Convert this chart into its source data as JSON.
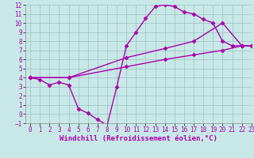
{
  "line1_x": [
    0,
    1,
    2,
    3,
    4,
    5,
    6,
    7,
    8,
    9,
    10,
    11,
    12,
    13,
    14,
    15,
    16,
    17,
    18,
    19,
    20,
    21,
    22,
    23
  ],
  "line1_y": [
    4.0,
    3.8,
    3.2,
    3.5,
    3.2,
    0.6,
    0.1,
    -0.6,
    -1.2,
    3.0,
    7.5,
    9.0,
    10.5,
    11.8,
    12.0,
    11.8,
    11.2,
    11.0,
    10.4,
    10.0,
    8.0,
    7.5,
    7.5,
    7.5
  ],
  "line2_x": [
    0,
    4,
    10,
    14,
    17,
    20,
    22,
    23
  ],
  "line2_y": [
    4.0,
    4.0,
    6.2,
    7.2,
    8.0,
    10.0,
    7.5,
    7.5
  ],
  "line3_x": [
    0,
    4,
    10,
    14,
    17,
    20,
    22,
    23
  ],
  "line3_y": [
    4.0,
    4.0,
    5.2,
    6.0,
    6.5,
    7.0,
    7.5,
    7.5
  ],
  "color": "#aa00aa",
  "bg_color": "#c8e8e8",
  "grid_color": "#9bbfbf",
  "xlabel": "Windchill (Refroidissement éolien,°C)",
  "xlim": [
    -0.5,
    23
  ],
  "ylim": [
    -1,
    12
  ],
  "xticks": [
    0,
    1,
    2,
    3,
    4,
    5,
    6,
    7,
    8,
    9,
    10,
    11,
    12,
    13,
    14,
    15,
    16,
    17,
    18,
    19,
    20,
    21,
    22,
    23
  ],
  "yticks": [
    -1,
    0,
    1,
    2,
    3,
    4,
    5,
    6,
    7,
    8,
    9,
    10,
    11,
    12
  ],
  "xlabel_fontsize": 6.5,
  "tick_fontsize": 5.5,
  "line_width": 1.0,
  "marker": "D",
  "marker_size": 2.5
}
